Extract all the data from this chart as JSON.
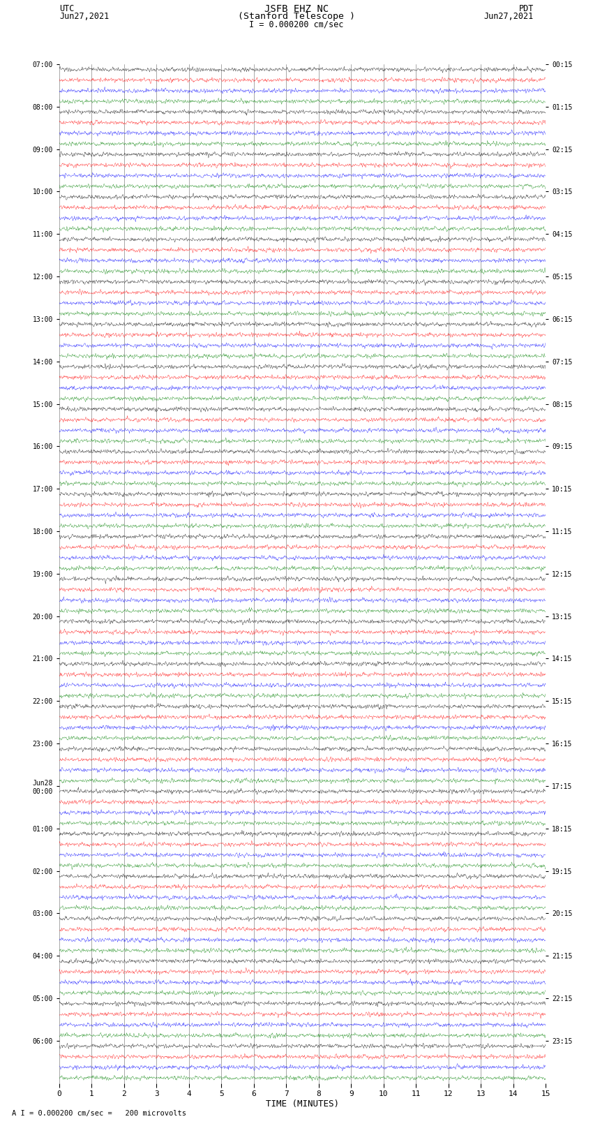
{
  "title_line1": "JSFB EHZ NC",
  "title_line2": "(Stanford Telescope )",
  "title_scale": "I = 0.000200 cm/sec",
  "left_label_top": "UTC",
  "left_label_date": "Jun27,2021",
  "right_label_top": "PDT",
  "right_label_date": "Jun27,2021",
  "bottom_label": "TIME (MINUTES)",
  "bottom_note": "A I = 0.000200 cm/sec =   200 microvolts",
  "xlabel_ticks": [
    0,
    1,
    2,
    3,
    4,
    5,
    6,
    7,
    8,
    9,
    10,
    11,
    12,
    13,
    14,
    15
  ],
  "utc_times": [
    "07:00",
    "08:00",
    "09:00",
    "10:00",
    "11:00",
    "12:00",
    "13:00",
    "14:00",
    "15:00",
    "16:00",
    "17:00",
    "18:00",
    "19:00",
    "20:00",
    "21:00",
    "22:00",
    "23:00",
    "Jun28\n00:00",
    "01:00",
    "02:00",
    "03:00",
    "04:00",
    "05:00",
    "06:00"
  ],
  "pdt_times": [
    "00:15",
    "01:15",
    "02:15",
    "03:15",
    "04:15",
    "05:15",
    "06:15",
    "07:15",
    "08:15",
    "09:15",
    "10:15",
    "11:15",
    "12:15",
    "13:15",
    "14:15",
    "15:15",
    "16:15",
    "17:15",
    "18:15",
    "19:15",
    "20:15",
    "21:15",
    "22:15",
    "23:15"
  ],
  "trace_colors": [
    "black",
    "red",
    "blue",
    "green"
  ],
  "n_hour_rows": 24,
  "n_traces_per_row": 4,
  "fig_width": 8.5,
  "fig_height": 16.13,
  "bg_color": "white",
  "noise_seed": 42,
  "n_pts": 1800,
  "trace_amplitude": 0.09,
  "linewidth": 0.25
}
